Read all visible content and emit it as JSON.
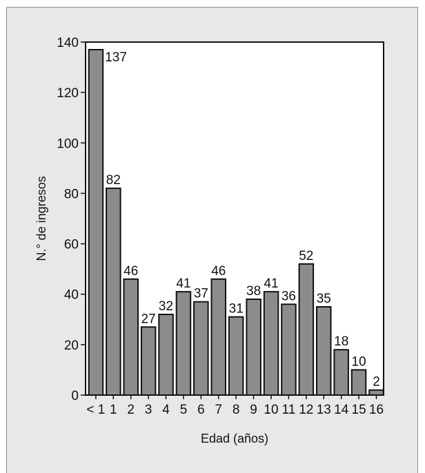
{
  "chart_data": {
    "type": "bar",
    "categories": [
      "< 1",
      "1",
      "2",
      "3",
      "4",
      "5",
      "6",
      "7",
      "8",
      "9",
      "10",
      "11",
      "12",
      "13",
      "14",
      "15",
      "16"
    ],
    "values": [
      137,
      82,
      46,
      27,
      32,
      41,
      37,
      46,
      31,
      38,
      41,
      36,
      52,
      35,
      18,
      10,
      2
    ],
    "data_labels": [
      "137",
      "82",
      "46",
      "27",
      "32",
      "41",
      "37",
      "46",
      "31",
      "38",
      "41",
      "36",
      "52",
      "35",
      "18",
      "10",
      "2"
    ],
    "xlabel": "Edad (años)",
    "ylabel": "N.° de ingresos",
    "ylim": [
      0,
      140
    ],
    "yticks": [
      "0",
      "20",
      "40",
      "60",
      "80",
      "100",
      "120",
      "140"
    ],
    "grid": false,
    "colors": {
      "bar": "#8c8c8c",
      "bar_stroke": "#111111",
      "background": "#e8e8e8",
      "plot_background": "#ffffff"
    }
  }
}
